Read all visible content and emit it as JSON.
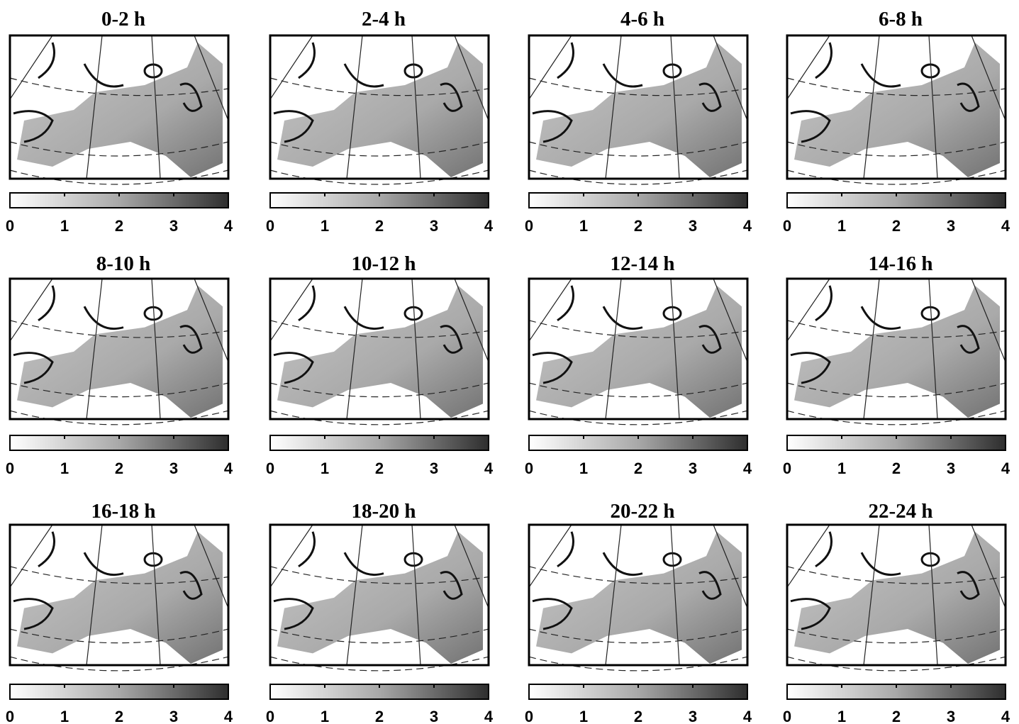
{
  "panels": [
    {
      "title": "0-2 h"
    },
    {
      "title": "2-4 h"
    },
    {
      "title": "4-6 h"
    },
    {
      "title": "6-8 h"
    },
    {
      "title": "8-10 h"
    },
    {
      "title": "10-12 h"
    },
    {
      "title": "12-14 h"
    },
    {
      "title": "14-16 h"
    },
    {
      "title": "16-18 h"
    },
    {
      "title": "18-20 h"
    },
    {
      "title": "20-22 h"
    },
    {
      "title": "22-24 h"
    }
  ],
  "colorbar": {
    "lim": [
      0,
      4
    ],
    "ticks": [
      0,
      1,
      2,
      3,
      4
    ]
  }
}
